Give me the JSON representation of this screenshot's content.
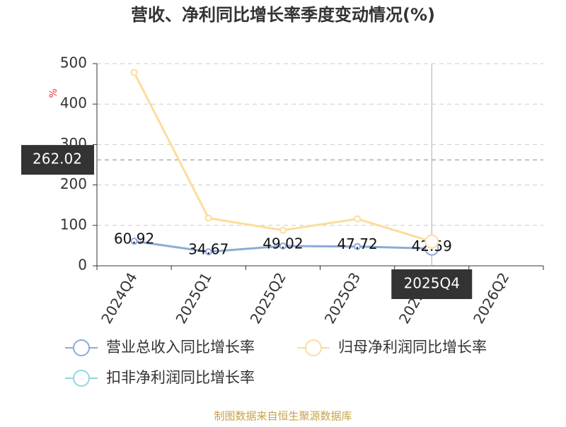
{
  "chart_data": {
    "type": "line",
    "title": "营收、净利同比增长率季度变动情况(%)",
    "y_unit": "%",
    "categories": [
      "2024Q4",
      "2025Q1",
      "2025Q2",
      "2025Q3",
      "2025Q4",
      "2026Q2"
    ],
    "series": [
      {
        "name": "营业总收入同比增长率",
        "color": "#8eaad6",
        "values": [
          60.92,
          34.67,
          49.02,
          47.72,
          42.59,
          null
        ],
        "show_labels": true
      },
      {
        "name": "归母净利润同比增长率",
        "color": "#fddc9b",
        "values": [
          478,
          118,
          88,
          116,
          60,
          null
        ]
      },
      {
        "name": "扣非净利润同比增长率",
        "color": "#8ed8e0",
        "values": [
          null,
          null,
          null,
          null,
          null,
          null
        ]
      }
    ],
    "ylim": [
      0,
      500
    ],
    "yticks": [
      0,
      100,
      200,
      300,
      400,
      500
    ],
    "grid": true,
    "axis_pointer": {
      "y": 262.02,
      "category_index": 4
    },
    "source": "制图数据来自恒生聚源数据库"
  }
}
